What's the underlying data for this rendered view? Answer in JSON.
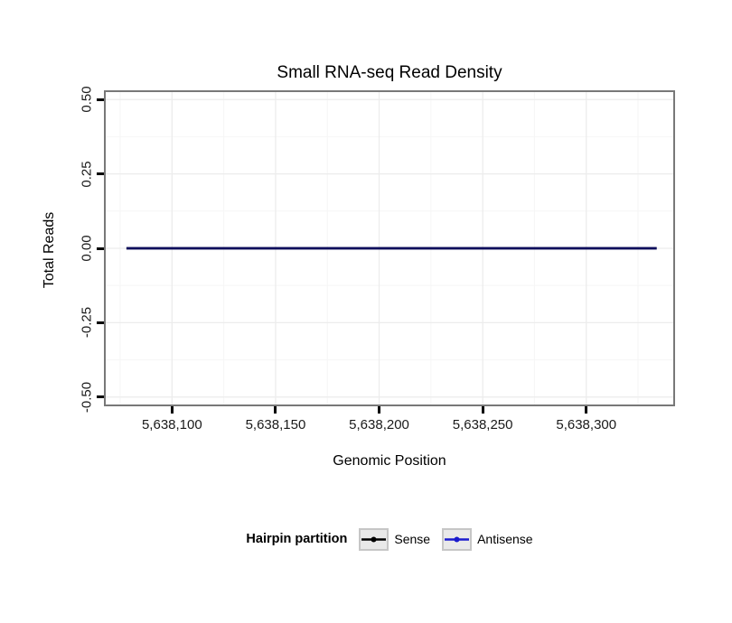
{
  "chart_data": {
    "type": "line",
    "title": "Small RNA-seq Read Density",
    "xlabel": "Genomic Position",
    "ylabel": "Total Reads",
    "xlim": [
      5638068,
      5638342
    ],
    "ylim": [
      -0.525,
      0.525
    ],
    "x_ticks": [
      {
        "value": 5638100,
        "label": "5,638,100"
      },
      {
        "value": 5638150,
        "label": "5,638,150"
      },
      {
        "value": 5638200,
        "label": "5,638,200"
      },
      {
        "value": 5638250,
        "label": "5,638,250"
      },
      {
        "value": 5638300,
        "label": "5,638,300"
      }
    ],
    "y_ticks": [
      {
        "value": 0.5,
        "label": "0.50"
      },
      {
        "value": 0.25,
        "label": "0.25"
      },
      {
        "value": 0,
        "label": "0.00"
      },
      {
        "value": -0.25,
        "label": "-0.25"
      },
      {
        "value": -0.5,
        "label": "-0.50"
      }
    ],
    "grid": "on",
    "legend_position": "bottom",
    "series": [
      {
        "name": "Sense",
        "color": "#000000",
        "x": [
          5638078,
          5638334
        ],
        "values": [
          0,
          0
        ]
      },
      {
        "name": "Antisense",
        "color": "#1a1acd",
        "x": [
          5638078,
          5638334
        ],
        "values": [
          0,
          0
        ]
      }
    ]
  },
  "legend": {
    "title": "Hairpin partition",
    "items": [
      {
        "label": "Sense",
        "color": "#000000"
      },
      {
        "label": "Antisense",
        "color": "#1a1acd"
      }
    ]
  },
  "colors": {
    "panel_border": "#787878",
    "grid_major": "#ececec",
    "grid_minor": "#f6f6f6",
    "tick_mark": "#000000",
    "plotted_line": "#0c0c5c"
  }
}
